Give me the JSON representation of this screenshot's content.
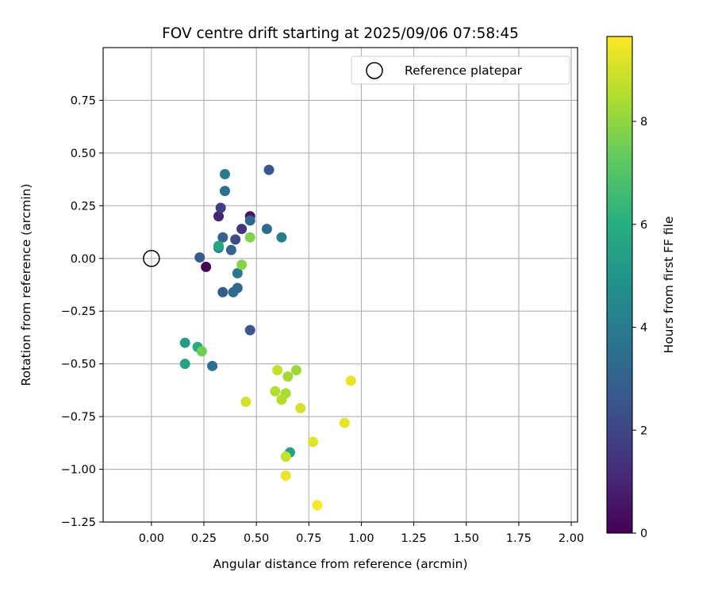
{
  "chart_data": {
    "type": "scatter",
    "title": "FOV centre drift starting at 2025/09/06 07:58:45",
    "xlabel": "Angular distance from reference (arcmin)",
    "ylabel": "Rotation from reference (arcmin)",
    "xlim": [
      -0.23,
      2.03
    ],
    "ylim": [
      -1.25,
      1.0
    ],
    "xticks": [
      "0.00",
      "0.25",
      "0.50",
      "0.75",
      "1.00",
      "1.25",
      "1.50",
      "1.75",
      "2.00"
    ],
    "yticks": [
      "0.75",
      "0.50",
      "0.25",
      "0.00",
      "−0.25",
      "−0.50",
      "−0.75",
      "−1.00",
      "−1.25"
    ],
    "grid": true,
    "legend": {
      "position": "top-right",
      "entries": [
        "Reference platepar"
      ]
    },
    "reference_point": {
      "x": 0.0,
      "y": 0.0
    },
    "colorbar": {
      "label": "Hours from first FF file",
      "range": [
        0,
        9.65
      ],
      "ticks": [
        "0",
        "2",
        "4",
        "6",
        "8"
      ],
      "colormap": "viridis"
    },
    "points": [
      {
        "x": 0.26,
        "y": -0.04,
        "h": 0.1
      },
      {
        "x": 0.47,
        "y": 0.2,
        "h": 0.5
      },
      {
        "x": 0.32,
        "y": 0.2,
        "h": 1.0
      },
      {
        "x": 0.43,
        "y": 0.14,
        "h": 1.4
      },
      {
        "x": 0.33,
        "y": 0.24,
        "h": 1.8
      },
      {
        "x": 0.4,
        "y": 0.09,
        "h": 2.2
      },
      {
        "x": 0.56,
        "y": 0.42,
        "h": 2.6
      },
      {
        "x": 0.34,
        "y": 0.1,
        "h": 2.9
      },
      {
        "x": 0.47,
        "y": -0.34,
        "h": 2.6
      },
      {
        "x": 0.23,
        "y": 0.005,
        "h": 2.8
      },
      {
        "x": 0.34,
        "y": -0.16,
        "h": 2.8
      },
      {
        "x": 0.38,
        "y": 0.04,
        "h": 3.0
      },
      {
        "x": 0.47,
        "y": 0.18,
        "h": 3.2
      },
      {
        "x": 0.41,
        "y": -0.14,
        "h": 3.2
      },
      {
        "x": 0.55,
        "y": 0.14,
        "h": 3.3
      },
      {
        "x": 0.39,
        "y": -0.16,
        "h": 3.3
      },
      {
        "x": 0.35,
        "y": 0.32,
        "h": 3.5
      },
      {
        "x": 0.29,
        "y": -0.51,
        "h": 3.5
      },
      {
        "x": 0.41,
        "y": -0.07,
        "h": 3.8
      },
      {
        "x": 0.62,
        "y": 0.1,
        "h": 4.1
      },
      {
        "x": 0.35,
        "y": 0.4,
        "h": 4.0
      },
      {
        "x": 0.32,
        "y": 0.05,
        "h": 4.4
      },
      {
        "x": 0.16,
        "y": -0.4,
        "h": 5.3
      },
      {
        "x": 0.66,
        "y": -0.92,
        "h": 5.5
      },
      {
        "x": 0.16,
        "y": -0.5,
        "h": 5.6
      },
      {
        "x": 0.32,
        "y": 0.06,
        "h": 5.7
      },
      {
        "x": 0.22,
        "y": -0.42,
        "h": 5.9
      },
      {
        "x": 0.24,
        "y": -0.44,
        "h": 7.5
      },
      {
        "x": 0.47,
        "y": 0.1,
        "h": 7.8
      },
      {
        "x": 0.43,
        "y": -0.03,
        "h": 7.9
      },
      {
        "x": 0.69,
        "y": -0.53,
        "h": 8.2
      },
      {
        "x": 0.65,
        "y": -0.56,
        "h": 8.3
      },
      {
        "x": 0.64,
        "y": -0.64,
        "h": 8.4
      },
      {
        "x": 0.62,
        "y": -0.67,
        "h": 8.5
      },
      {
        "x": 0.59,
        "y": -0.63,
        "h": 8.5
      },
      {
        "x": 0.6,
        "y": -0.53,
        "h": 8.8
      },
      {
        "x": 0.64,
        "y": -0.94,
        "h": 8.8
      },
      {
        "x": 0.45,
        "y": -0.68,
        "h": 9.0
      },
      {
        "x": 0.71,
        "y": -0.71,
        "h": 9.1
      },
      {
        "x": 0.77,
        "y": -0.87,
        "h": 9.2
      },
      {
        "x": 0.95,
        "y": -0.58,
        "h": 9.3
      },
      {
        "x": 0.92,
        "y": -0.78,
        "h": 9.3
      },
      {
        "x": 0.64,
        "y": -1.03,
        "h": 9.4
      },
      {
        "x": 0.79,
        "y": -1.17,
        "h": 9.6
      }
    ]
  }
}
